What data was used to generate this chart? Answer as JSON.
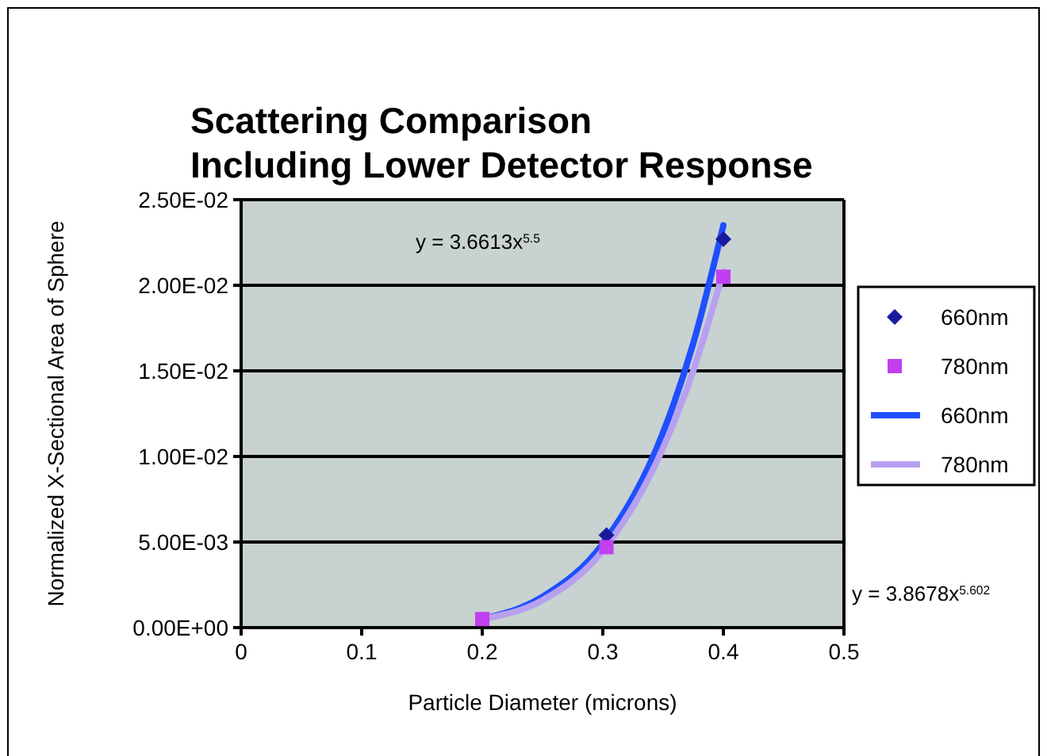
{
  "chart_data": {
    "type": "scatter",
    "title": "Scattering Comparison\nIncluding Lower Detector Response",
    "xlabel": "Particle Diameter (microns)",
    "ylabel": "Normalized X-Sectional Area of Sphere",
    "xlim": [
      0,
      0.5
    ],
    "xticks": [
      0,
      0.1,
      0.2,
      0.3,
      0.4,
      0.5
    ],
    "ylim": [
      0,
      0.025
    ],
    "yticks": [
      {
        "value": 0,
        "label": "0.00E+00"
      },
      {
        "value": 0.005,
        "label": "5.00E-03"
      },
      {
        "value": 0.01,
        "label": "1.00E-02"
      },
      {
        "value": 0.015,
        "label": "1.50E-02"
      },
      {
        "value": 0.02,
        "label": "2.00E-02"
      },
      {
        "value": 0.025,
        "label": "2.50E-02"
      }
    ],
    "grid": "y",
    "legend": "right",
    "annotations": [
      "y = 3.6613x$^{5.5}$",
      "y = 3.8678x$^{5.602}$"
    ],
    "series": [
      {
        "name": "660nm",
        "marker": "diamond",
        "color": "#1a1a9e",
        "x": [
          0.303,
          0.4
        ],
        "values": [
          0.0054,
          0.0227
        ]
      },
      {
        "name": "780nm",
        "marker": "square",
        "color": "#c040f0",
        "x": [
          0.2,
          0.303,
          0.4
        ],
        "values": [
          0.0005,
          0.0047,
          0.0205
        ]
      },
      {
        "name": "660nm",
        "type": "line",
        "color": "#1f4fff",
        "x": [
          0.2,
          0.25,
          0.3,
          0.35,
          0.375,
          0.4
        ],
        "values": [
          0.0005,
          0.0018,
          0.0049,
          0.0114,
          0.0166,
          0.0235
        ]
      },
      {
        "name": "780nm",
        "type": "line",
        "color": "#b8a0f0",
        "x": [
          0.2,
          0.25,
          0.3,
          0.35,
          0.375,
          0.4
        ],
        "values": [
          0.0005,
          0.0016,
          0.0045,
          0.0105,
          0.015,
          0.0208
        ]
      }
    ]
  }
}
